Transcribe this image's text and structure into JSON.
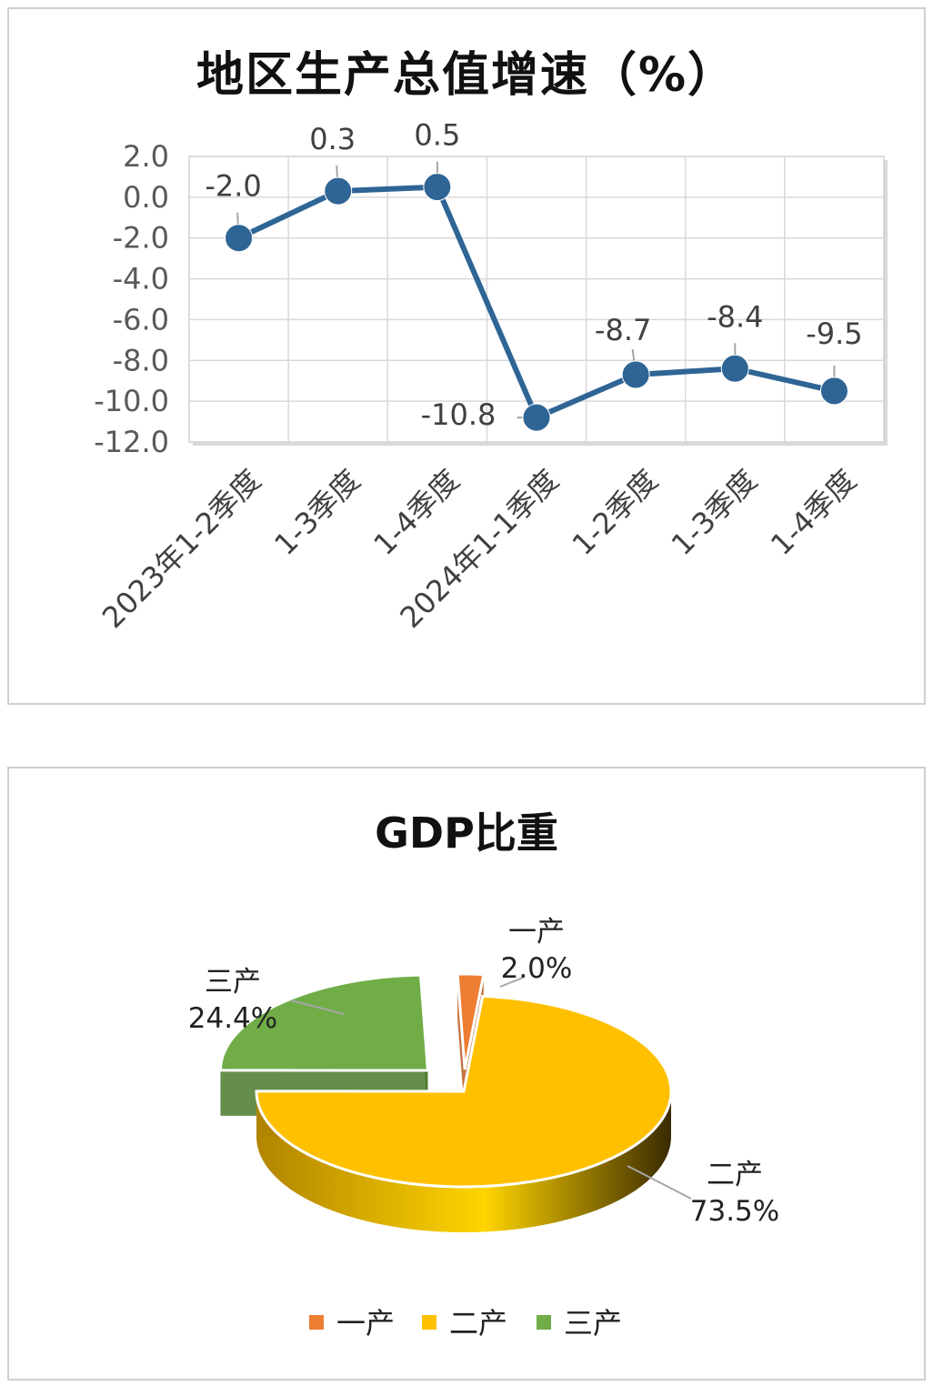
{
  "chart_data": [
    {
      "type": "line",
      "title": "地区生产总值增速（%）",
      "categories": [
        "2023年1-2季度",
        "1-3季度",
        "1-4季度",
        "2024年1-1季度",
        "1-2季度",
        "1-3季度",
        "1-4季度"
      ],
      "series": [
        {
          "values": [
            -2.0,
            0.3,
            0.5,
            -10.8,
            -8.7,
            -8.4,
            -9.5
          ],
          "data_labels": [
            "-2.0",
            "0.3",
            "0.5",
            "-10.8",
            "-8.7",
            "-8.4",
            "-9.5"
          ]
        }
      ],
      "ylim": [
        -12.0,
        2.0
      ],
      "yticks": [
        "2.0",
        "0.0",
        "-2.0",
        "-4.0",
        "-6.0",
        "-8.0",
        "-10.0",
        "-12.0"
      ],
      "grid": true,
      "color": "#2e6595"
    },
    {
      "type": "pie",
      "title": "GDP比重",
      "categories": [
        "一产",
        "二产",
        "三产"
      ],
      "values": [
        2.0,
        73.5,
        24.4
      ],
      "data_labels": [
        "2.0%",
        "73.5%",
        "24.4%"
      ],
      "colors": [
        "#ed7d31",
        "#ffc000",
        "#70ad47"
      ],
      "legend_position": "bottom",
      "style": "3d-exploded"
    }
  ]
}
